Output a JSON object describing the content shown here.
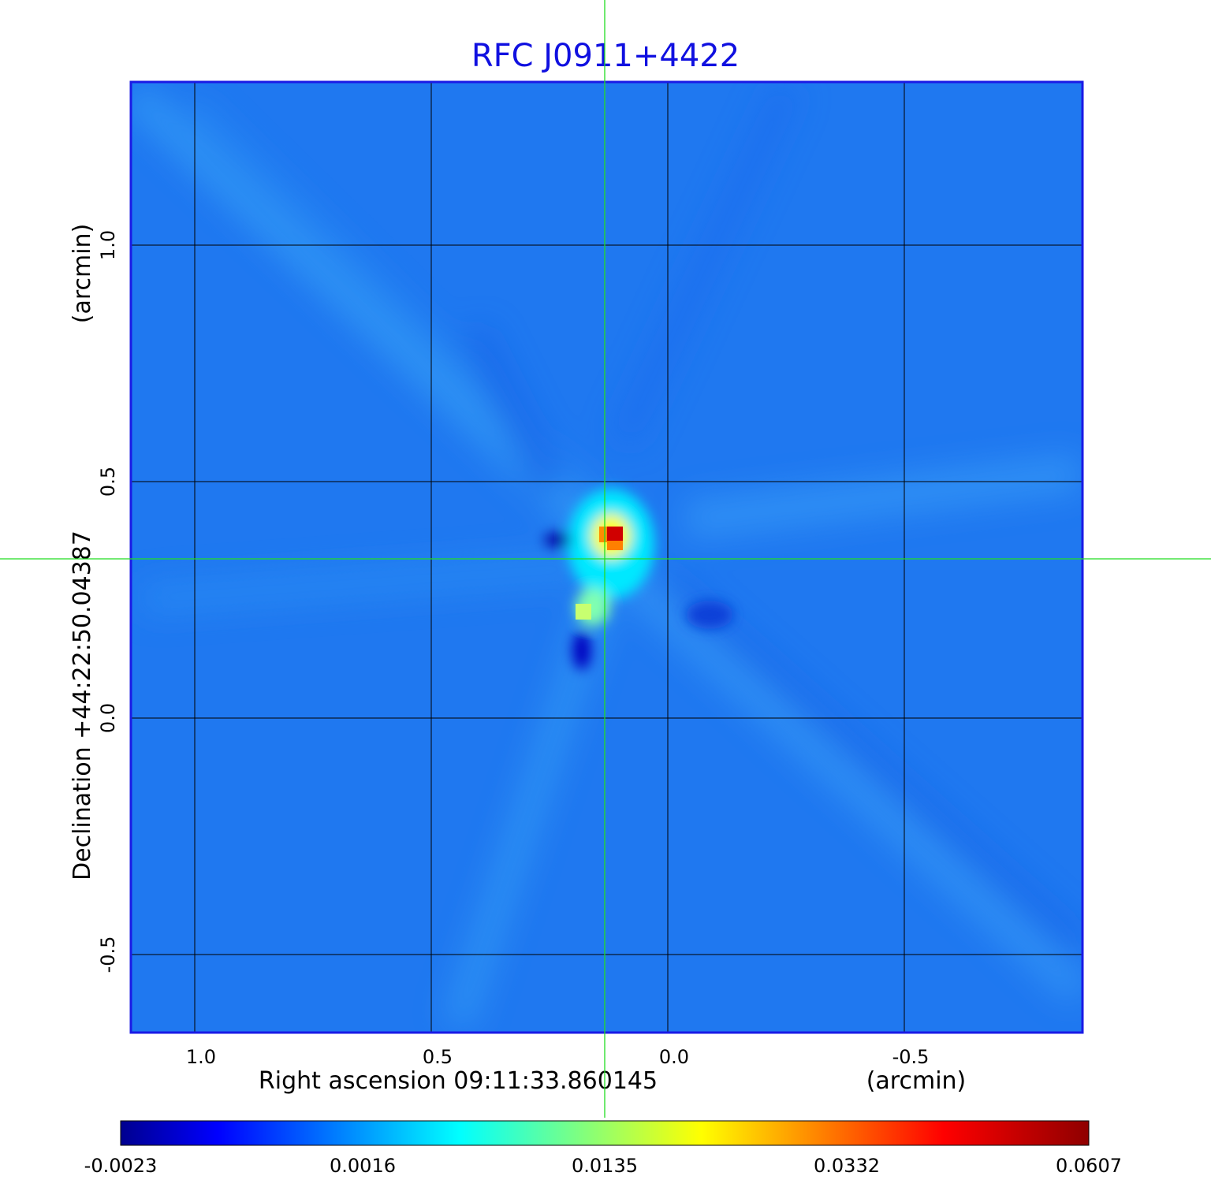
{
  "chart_data": {
    "type": "heatmap",
    "title": "RFC J0911+4422",
    "xlabel": "Right ascension  09:11:33.860145",
    "xunit": "(arcmin)",
    "ylabel": "Declination  +44:22:50.04387",
    "yunit": "(arcmin)",
    "xlim": [
      1.137,
      -0.88
    ],
    "ylim": [
      -0.663,
      1.35
    ],
    "x_ticks": [
      1.0,
      0.5,
      0.0,
      -0.5
    ],
    "x_tick_labels": [
      "1.0",
      "0.5",
      "0.0",
      "-0.5"
    ],
    "y_ticks": [
      1.0,
      0.5,
      0.0,
      -0.5
    ],
    "y_tick_labels": [
      "1.0",
      "0.5",
      "0.0",
      "-0.5"
    ],
    "grid": true,
    "crosshair": {
      "x": 0.133,
      "y": 0.337
    },
    "colormap": "jet",
    "colorbar": {
      "placement": "bottom",
      "tick_labels": [
        "-0.0023",
        "0.0016",
        "0.0135",
        "0.0332",
        "0.0607"
      ],
      "min": -0.0023,
      "max": 0.0607
    },
    "features": [
      {
        "name": "peak",
        "x": 0.11,
        "y": 0.39,
        "value": 0.0607
      },
      {
        "name": "secondary component",
        "x": 0.18,
        "y": 0.22,
        "value": 0.02
      },
      {
        "name": "negative hole",
        "x": 0.23,
        "y": 0.375,
        "value": -0.0023
      },
      {
        "name": "negative hole south",
        "x": 0.18,
        "y": 0.15,
        "value": -0.0023
      }
    ]
  },
  "colors": {
    "title": "#1010e0",
    "frame": "#1a1ae6",
    "crosshair": "#22dd22",
    "background_map": "#1f78f0"
  }
}
